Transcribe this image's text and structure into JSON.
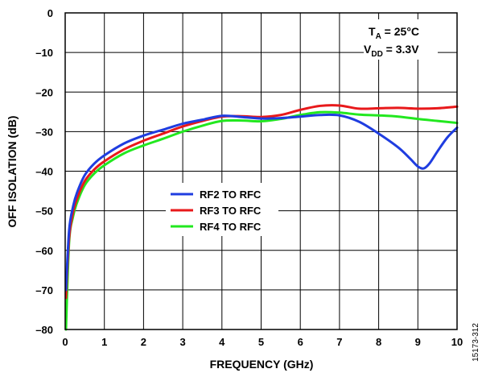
{
  "chart_data": {
    "type": "line",
    "xlabel": "FREQUENCY (GHz)",
    "ylabel": "OFF ISOLATION (dB)",
    "xlim": [
      0,
      10
    ],
    "ylim": [
      -80,
      0
    ],
    "x_ticks": [
      "0",
      "1",
      "2",
      "3",
      "4",
      "5",
      "6",
      "7",
      "8",
      "9",
      "10"
    ],
    "y_ticks": [
      "0",
      "–10",
      "–20",
      "–30",
      "–40",
      "–50",
      "–60",
      "–70",
      "–80"
    ],
    "grid": true,
    "legend_placement": "center-left",
    "annotations": {
      "temp_prefix": "T",
      "temp_sub": "A",
      "temp_suffix": " = 25°C",
      "vdd_prefix": "V",
      "vdd_sub": "DD",
      "vdd_suffix": " = 3.3V"
    },
    "figure_id": "15173-312",
    "series": [
      {
        "name": "RF2 TO RFC",
        "color": "#1f3de0",
        "x": [
          0.02,
          0.1,
          0.2,
          0.3,
          0.5,
          0.75,
          1.0,
          1.5,
          2.0,
          2.5,
          3.0,
          3.5,
          4.0,
          4.5,
          5.0,
          5.5,
          6.0,
          6.5,
          7.0,
          7.5,
          8.0,
          8.5,
          8.8,
          9.0,
          9.15,
          9.3,
          9.5,
          9.75,
          10.0
        ],
        "y": [
          -70,
          -55,
          -49,
          -45.5,
          -41,
          -38,
          -36,
          -33,
          -31,
          -29.5,
          -28,
          -27,
          -26,
          -26.3,
          -26.7,
          -26.6,
          -26.2,
          -25.8,
          -25.9,
          -27.5,
          -30.5,
          -34,
          -36.8,
          -38.8,
          -39.3,
          -38,
          -35,
          -31.5,
          -29
        ]
      },
      {
        "name": "RF3 TO RFC",
        "color": "#e8191b",
        "x": [
          0.02,
          0.1,
          0.2,
          0.3,
          0.5,
          0.75,
          1.0,
          1.5,
          2.0,
          2.5,
          3.0,
          3.5,
          4.0,
          4.5,
          5.0,
          5.5,
          6.0,
          6.5,
          7.0,
          7.5,
          8.0,
          8.5,
          9.0,
          9.5,
          10.0
        ],
        "y": [
          -72,
          -57,
          -50.5,
          -47,
          -42.5,
          -39.5,
          -37.5,
          -34.5,
          -32.3,
          -30.5,
          -28.7,
          -27.3,
          -26.2,
          -26.1,
          -26.3,
          -25.8,
          -24.5,
          -23.5,
          -23.4,
          -24.2,
          -24.1,
          -24.0,
          -24.2,
          -24.1,
          -23.7
        ]
      },
      {
        "name": "RF4 TO RFC",
        "color": "#22e81f",
        "x": [
          0.02,
          0.1,
          0.2,
          0.3,
          0.5,
          0.75,
          1.0,
          1.5,
          2.0,
          2.5,
          3.0,
          3.5,
          4.0,
          4.5,
          5.0,
          5.5,
          6.0,
          6.5,
          7.0,
          7.5,
          8.0,
          8.5,
          9.0,
          9.5,
          10.0
        ],
        "y": [
          -80,
          -58,
          -51.5,
          -48,
          -43.5,
          -40.5,
          -38.5,
          -35.5,
          -33.5,
          -31.8,
          -30,
          -28.5,
          -27.3,
          -27.2,
          -27.4,
          -26.8,
          -25.8,
          -25.1,
          -25.2,
          -25.7,
          -25.9,
          -26.2,
          -26.8,
          -27.3,
          -27.8
        ]
      }
    ]
  }
}
